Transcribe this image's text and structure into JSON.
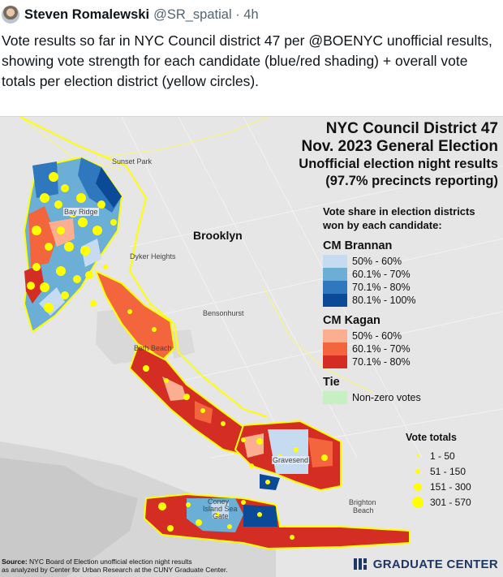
{
  "tweet": {
    "author_name": "Steven Romalewski",
    "author_handle": "@SR_spatial · 4h",
    "text": "Vote results so far in NYC Council district 47 per @BOENYC unofficial results, showing vote strength for each candidate (blue/red shading) + overall vote totals per election district (yellow circles)."
  },
  "map": {
    "title_line1": "NYC Council District 47",
    "title_line2": "Nov. 2023 General Election",
    "title_line3": "Unofficial election night results",
    "title_line4": "(97.7% precincts reporting)",
    "places": {
      "sunset_park": "Sunset Park",
      "bay_ridge": "Bay Ridge",
      "dyker_heights": "Dyker Heights",
      "brooklyn": "Brooklyn",
      "bensonhurst": "Bensonhurst",
      "bath_beach": "Bath Beach",
      "gravesend": "Gravesend",
      "coney_island_sea_gate_1": "Coney",
      "coney_island_sea_gate_2": "Island Sea",
      "coney_island_sea_gate_3": "Gate",
      "brighton_beach_1": "Brighton",
      "brighton_beach_2": "Beach"
    },
    "legend": {
      "heading_line1": "Vote share in election districts",
      "heading_line2": "won by each candidate:",
      "brannan_label": "CM Brannan",
      "brannan_items": [
        {
          "label": "50% - 60%",
          "color": "#c6dbef"
        },
        {
          "label": "60.1% - 70%",
          "color": "#6baed6"
        },
        {
          "label": "70.1% - 80%",
          "color": "#2f78bd"
        },
        {
          "label": "80.1% - 100%",
          "color": "#0b4a96"
        }
      ],
      "kagan_label": "CM Kagan",
      "kagan_items": [
        {
          "label": "50% - 60%",
          "color": "#fcae91"
        },
        {
          "label": "60.1% - 70%",
          "color": "#f3653d"
        },
        {
          "label": "70.1% - 80%",
          "color": "#d32d24"
        }
      ],
      "tie_label": "Tie",
      "tie_items": [
        {
          "label": "Non-zero votes",
          "color": "#c7f0c2"
        }
      ]
    },
    "vote_totals": {
      "title": "Vote totals",
      "items": [
        {
          "label": "1 - 50"
        },
        {
          "label": "51 - 150"
        },
        {
          "label": "151 - 300"
        },
        {
          "label": "301 - 570"
        }
      ],
      "circle_color": "#ffff00"
    },
    "source_line1_bold": "Source:",
    "source_line1": " NYC Board of Election unofficial election night results",
    "source_line2": "as analyzed by Center for Urban Research at the CUNY Graduate Center.",
    "logo_text": "GRADUATE CENTER"
  }
}
